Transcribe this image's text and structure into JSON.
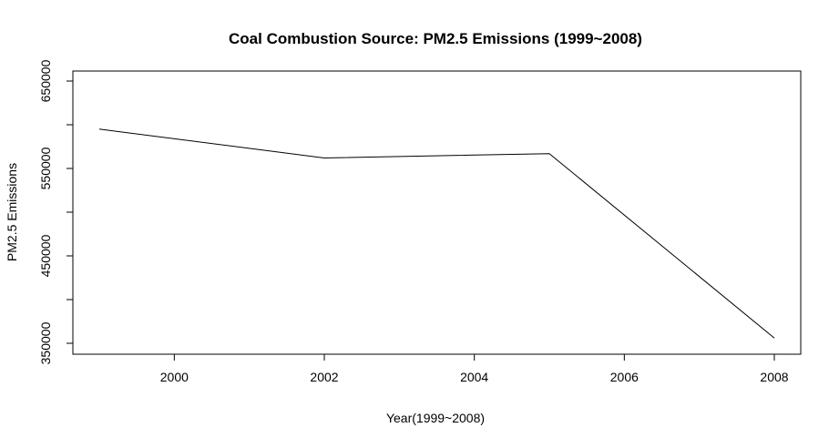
{
  "chart_data": {
    "type": "line",
    "title": "Coal Combustion Source: PM2.5 Emissions (1999~2008)",
    "xlabel": "Year(1999~2008)",
    "ylabel": "PM2.5 Emissions",
    "x_ticks": [
      2000,
      2002,
      2004,
      2006,
      2008
    ],
    "x_tick_labels": [
      "2000",
      "2002",
      "2004",
      "2006",
      "2008"
    ],
    "y_ticks": [
      350000,
      450000,
      550000,
      650000
    ],
    "y_tick_labels": [
      "350000",
      "450000",
      "550000",
      "650000"
    ],
    "y_minor_ticks": [
      400000,
      500000,
      600000
    ],
    "xlim": [
      1999,
      2008
    ],
    "ylim": [
      350000,
      650000
    ],
    "grid": false,
    "series": [
      {
        "x": [
          1999,
          2002,
          2005,
          2008
        ],
        "y": [
          595000,
          562000,
          567000,
          356000
        ],
        "color": "#000000"
      }
    ]
  }
}
